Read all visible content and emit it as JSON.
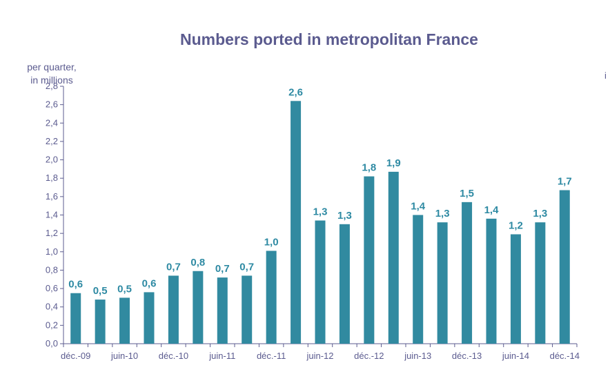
{
  "chart_data": {
    "type": "bar",
    "title": "Numbers ported in metropolitan France",
    "ylabel_lines": [
      "per quarter,",
      "in millions"
    ],
    "stray_text": "i",
    "bar_color": "#318aa0",
    "text_color": "#5b5b8f",
    "label_color": "#2e8aa3",
    "ylim": [
      0,
      2.8
    ],
    "ytick_step": 0.2,
    "ytick_labels": [
      "0,0",
      "0,2",
      "0,4",
      "0,6",
      "0,8",
      "1,0",
      "1,2",
      "1,4",
      "1,6",
      "1,8",
      "2,0",
      "2,2",
      "2,4",
      "2,6",
      "2,8"
    ],
    "values": [
      0.55,
      0.48,
      0.5,
      0.56,
      0.74,
      0.79,
      0.72,
      0.74,
      1.01,
      2.64,
      1.34,
      1.3,
      1.82,
      1.87,
      1.4,
      1.32,
      1.54,
      1.36,
      1.19,
      1.32,
      1.67
    ],
    "data_labels": [
      "0,6",
      "0,5",
      "0,5",
      "0,6",
      "0,7",
      "0,8",
      "0,7",
      "0,7",
      "1,0",
      "2,6",
      "1,3",
      "1,3",
      "1,8",
      "1,9",
      "1,4",
      "1,3",
      "1,5",
      "1,4",
      "1,2",
      "1,3",
      "1,7"
    ],
    "x_tick_labels": [
      "déc.-09",
      "juin-10",
      "déc.-10",
      "juin-11",
      "déc.-11",
      "juin-12",
      "déc.-12",
      "juin-13",
      "déc.-13",
      "juin-14",
      "déc.-14"
    ],
    "x_tick_label_positions": [
      0,
      2,
      4,
      6,
      8,
      10,
      12,
      14,
      16,
      18,
      20
    ],
    "grid": false,
    "legend": "none"
  }
}
